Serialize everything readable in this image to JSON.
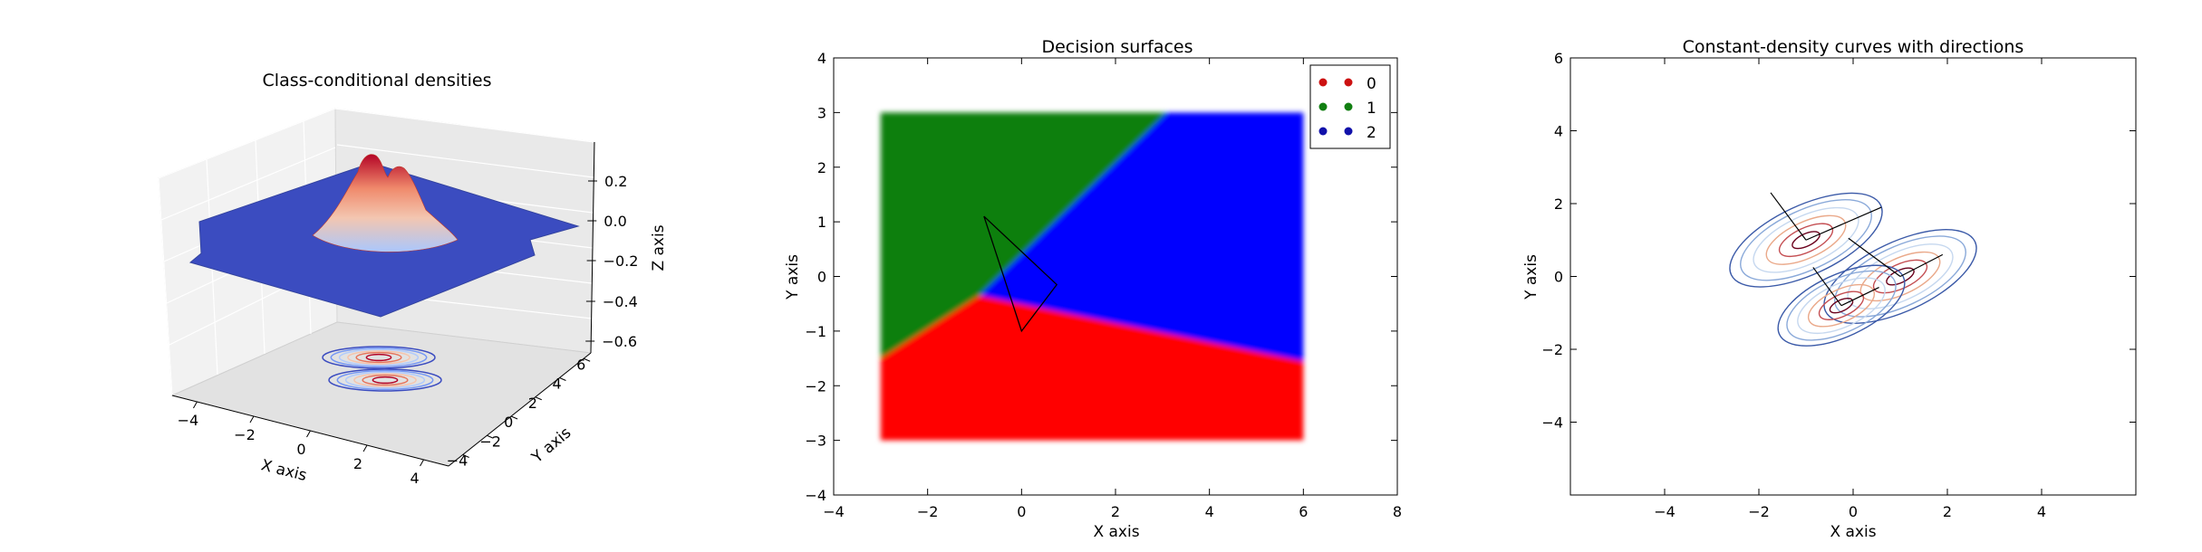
{
  "chart_data": [
    {
      "type": "surface3d",
      "title": "Class-conditional densities",
      "xlabel": "X axis",
      "ylabel": "Y axis",
      "zlabel": "Z axis",
      "x_ticks": [
        "−4",
        "−2",
        "0",
        "2",
        "4"
      ],
      "y_ticks": [
        "−4",
        "−2",
        "0",
        "2",
        "4",
        "6"
      ],
      "z_ticks": [
        "0.2",
        "0.0",
        "−0.2",
        "−0.4",
        "−0.6"
      ],
      "xlim": [
        -5,
        5
      ],
      "ylim": [
        -5,
        6
      ],
      "zlim": [
        -0.65,
        0.3
      ],
      "colormap": "coolwarm",
      "surface_color": "#3b4cc0",
      "peak_color": "#b40426",
      "surface_peak_z": 0.22,
      "contour_floor_z": -0.65
    },
    {
      "type": "decision_regions",
      "title": "Decision surfaces",
      "xlabel": "X axis",
      "ylabel": "Y axis",
      "xlim": [
        -4,
        8
      ],
      "ylim": [
        -4,
        4
      ],
      "x_ticks": [
        "−4",
        "−2",
        "0",
        "2",
        "4",
        "6",
        "8"
      ],
      "y_ticks": [
        "−4",
        "−3",
        "−2",
        "−1",
        "0",
        "1",
        "2",
        "3",
        "4"
      ],
      "grid_extent": {
        "x": [
          -3,
          6
        ],
        "y": [
          -3,
          3
        ]
      },
      "boundary_point": [
        -0.9,
        -0.35
      ],
      "boundaries": [
        {
          "between": [
            "1",
            "2"
          ],
          "to": [
            3.1,
            3.0
          ]
        },
        {
          "between": [
            "0",
            "1"
          ],
          "to": [
            -3.0,
            -1.5
          ]
        },
        {
          "between": [
            "0",
            "2"
          ],
          "to": [
            6.0,
            -1.55
          ]
        }
      ],
      "triangle": [
        [
          -0.8,
          1.1
        ],
        [
          0.75,
          -0.15
        ],
        [
          0.0,
          -1.0
        ]
      ],
      "classes": [
        {
          "name": "0",
          "color": "#ff0000",
          "marker": "#cc1111"
        },
        {
          "name": "1",
          "color": "#117f11",
          "marker": "#117f11"
        },
        {
          "name": "2",
          "color": "#0000ff",
          "marker": "#1111aa"
        }
      ],
      "legend_position": "upper right"
    },
    {
      "type": "contour",
      "title": "Constant-density curves with directions",
      "xlabel": "X axis",
      "ylabel": "Y axis",
      "xlim": [
        -6,
        6
      ],
      "ylim": [
        -6,
        6
      ],
      "x_ticks": [
        -4,
        -2,
        0,
        2,
        4
      ],
      "y_ticks": [
        -4,
        -2,
        0,
        2,
        4,
        6
      ],
      "x_tick_labels": [
        "−4",
        "−2",
        "0",
        "2",
        "4"
      ],
      "y_tick_labels": [
        "−4",
        "−2",
        "0",
        "2",
        "4",
        "6"
      ],
      "rotation_deg": 25,
      "contour_scales": [
        0.18,
        0.35,
        0.52,
        0.69,
        0.86,
        1.0
      ],
      "contour_colors": [
        "#6a001c",
        "#c44e52",
        "#eaa98a",
        "#c6d8ef",
        "#8aa9d9",
        "#3b5aa8"
      ],
      "clusters": [
        {
          "center": [
            -1.0,
            1.0
          ],
          "rx": 1.75,
          "ry": 0.95
        },
        {
          "center": [
            1.0,
            0.0
          ],
          "rx": 1.75,
          "ry": 0.95
        },
        {
          "center": [
            -0.25,
            -0.8
          ],
          "rx": 1.45,
          "ry": 0.85
        }
      ],
      "directions": [
        {
          "from": [
            -1.0,
            1.0
          ],
          "to": [
            -1.75,
            2.3
          ]
        },
        {
          "from": [
            -1.0,
            1.0
          ],
          "to": [
            0.6,
            1.9
          ]
        },
        {
          "from": [
            1.0,
            0.0
          ],
          "to": [
            -0.1,
            1.05
          ]
        },
        {
          "from": [
            1.0,
            0.0
          ],
          "to": [
            1.9,
            0.6
          ]
        },
        {
          "from": [
            -0.25,
            -0.8
          ],
          "to": [
            -0.85,
            0.25
          ]
        },
        {
          "from": [
            -0.25,
            -0.8
          ],
          "to": [
            0.55,
            -0.3
          ]
        }
      ]
    }
  ]
}
